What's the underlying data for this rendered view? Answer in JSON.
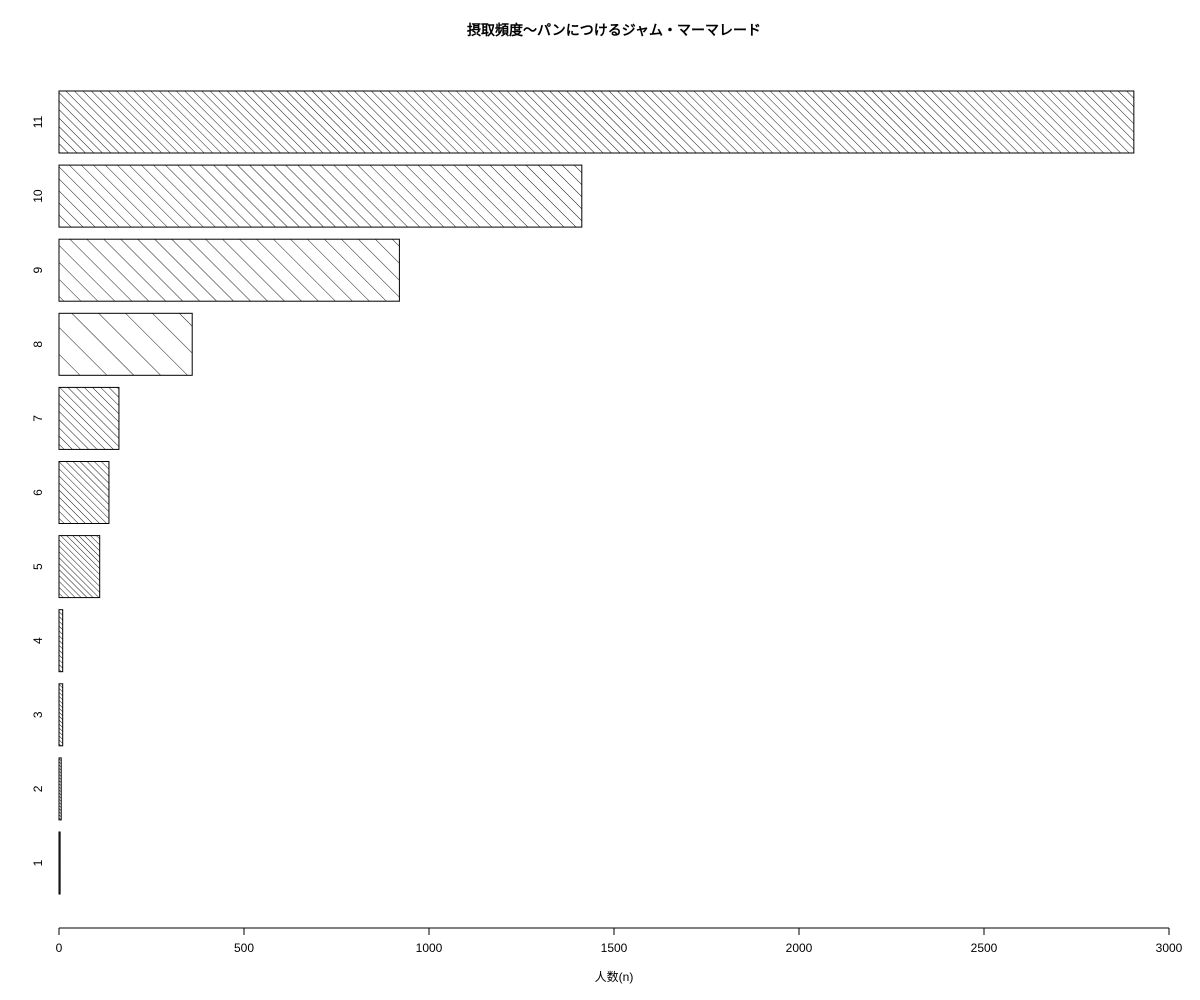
{
  "chart_data": {
    "type": "bar",
    "orientation": "horizontal",
    "title": "摂取頻度〜パンにつけるジャム・マーマレード",
    "xlabel": "人数(n)",
    "ylabel": "",
    "categories": [
      "1",
      "2",
      "3",
      "4",
      "5",
      "6",
      "7",
      "8",
      "9",
      "10",
      "11"
    ],
    "values": [
      3,
      6,
      10,
      10,
      110,
      135,
      162,
      360,
      920,
      1413,
      2905
    ],
    "xlim": [
      0,
      3000
    ],
    "xticks": [
      0,
      500,
      1000,
      1500,
      2000,
      2500,
      3000
    ],
    "grid": false,
    "legend": "none",
    "fill": "diagonal-hatch",
    "bar_color": "#000000",
    "background": "#ffffff"
  }
}
